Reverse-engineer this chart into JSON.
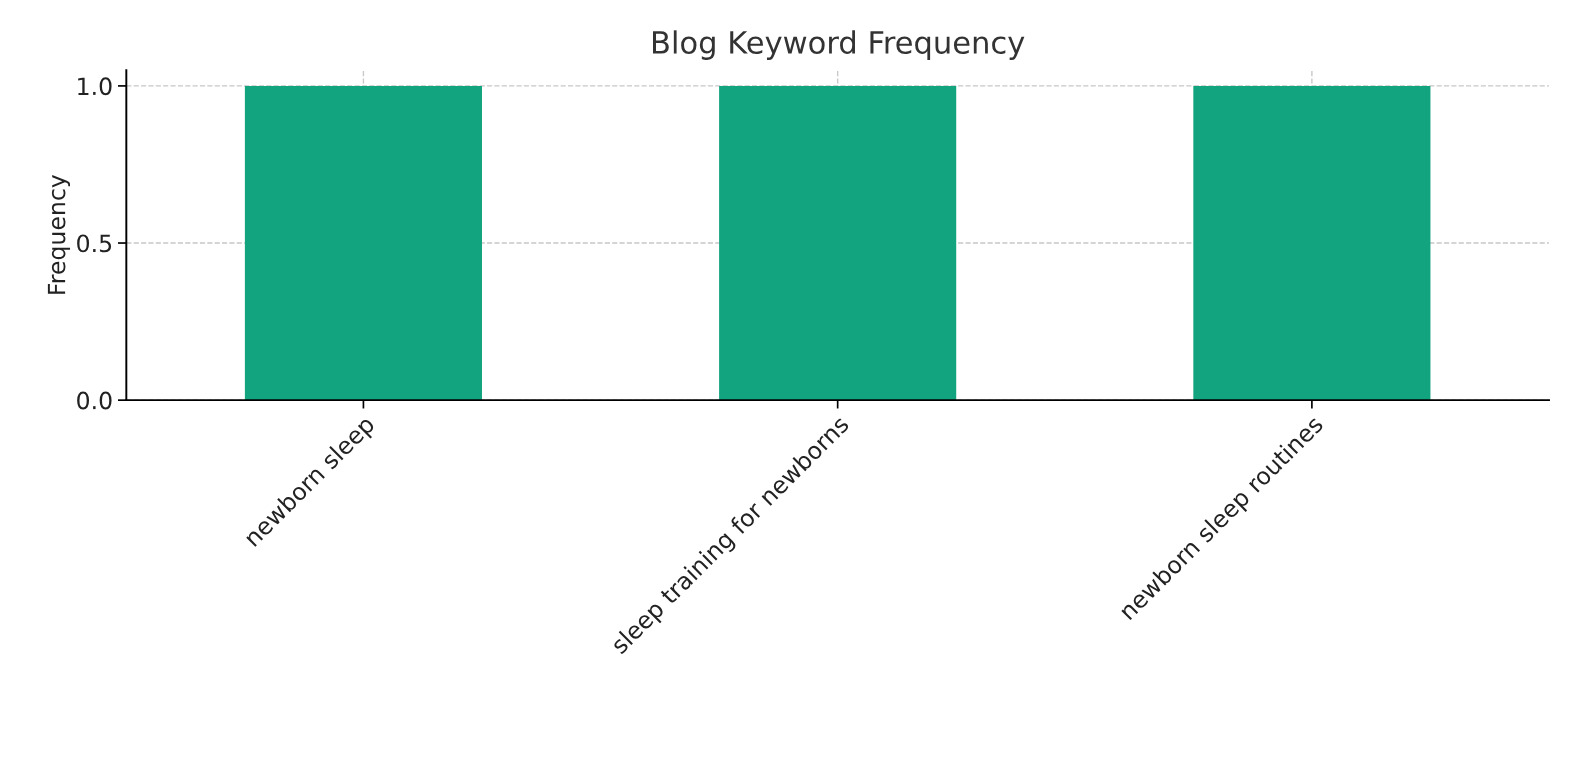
{
  "chart_data": {
    "type": "bar",
    "title": "Blog Keyword Frequency",
    "ylabel": "Frequency",
    "categories": [
      "newborn sleep",
      "sleep training for newborns",
      "newborn sleep routines"
    ],
    "values": [
      1,
      1,
      1
    ],
    "color": "#12a37f",
    "ylim": [
      0,
      1.05
    ],
    "yticks": [
      {
        "value": 0,
        "label": "0.0"
      },
      {
        "value": 0.5,
        "label": "0.5"
      },
      {
        "value": 1,
        "label": "1.0"
      }
    ],
    "grid": true
  }
}
